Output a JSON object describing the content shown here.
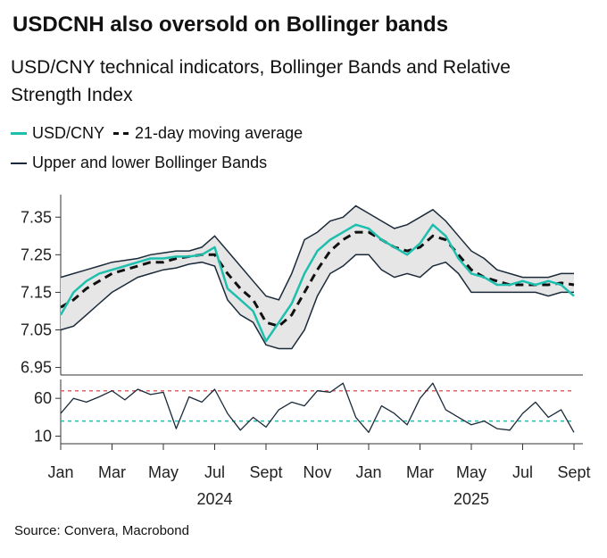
{
  "title": "USDCNH also oversold on Bollinger bands",
  "subtitle": "USD/CNY technical indicators, Bollinger Bands and Relative Strength Index",
  "legend": {
    "usd_cny": "USD/CNY",
    "ma21": "21-day moving average",
    "bands": "Upper and lower Bollinger Bands"
  },
  "source": "Source: Convera, Macrobond",
  "colors": {
    "usd_cny": "#1fbfae",
    "ma": "#111111",
    "bands": "#1b2a3a",
    "band_fill": "#e6e6e6",
    "rsi_line": "#1b2a3a",
    "rsi_upper": "#e06666",
    "rsi_lower": "#1fbfae"
  },
  "chart_data": {
    "type": "line",
    "upper_panel": {
      "y_ticks": [
        "7.35",
        "7.25",
        "7.15",
        "7.05",
        "6.95"
      ],
      "ylim": [
        6.93,
        7.41
      ],
      "x": [
        0,
        0.5,
        1,
        1.5,
        2,
        2.5,
        3,
        3.5,
        4,
        4.5,
        5,
        5.5,
        6,
        6.5,
        7,
        7.5,
        8,
        8.5,
        9,
        9.5,
        10,
        10.5,
        11,
        11.5,
        12,
        12.5,
        13,
        13.5,
        14,
        14.5,
        15,
        15.5,
        16,
        16.5,
        17,
        17.5,
        18,
        18.5,
        19,
        19.5,
        20
      ],
      "series": [
        {
          "name": "USD/CNY",
          "values": [
            7.09,
            7.15,
            7.18,
            7.2,
            7.21,
            7.22,
            7.23,
            7.24,
            7.24,
            7.245,
            7.245,
            7.25,
            7.27,
            7.16,
            7.13,
            7.1,
            7.02,
            7.07,
            7.12,
            7.2,
            7.26,
            7.29,
            7.31,
            7.33,
            7.32,
            7.29,
            7.27,
            7.25,
            7.28,
            7.33,
            7.3,
            7.24,
            7.2,
            7.19,
            7.17,
            7.17,
            7.18,
            7.17,
            7.18,
            7.17,
            7.14
          ]
        },
        {
          "name": "21-day moving average",
          "values": [
            7.11,
            7.13,
            7.16,
            7.18,
            7.2,
            7.21,
            7.22,
            7.23,
            7.23,
            7.24,
            7.245,
            7.25,
            7.25,
            7.2,
            7.16,
            7.13,
            7.07,
            7.06,
            7.09,
            7.15,
            7.21,
            7.26,
            7.29,
            7.31,
            7.31,
            7.29,
            7.27,
            7.26,
            7.27,
            7.3,
            7.29,
            7.25,
            7.21,
            7.19,
            7.18,
            7.17,
            7.17,
            7.17,
            7.17,
            7.175,
            7.17
          ]
        },
        {
          "name": "Upper Bollinger Band",
          "values": [
            7.19,
            7.2,
            7.21,
            7.22,
            7.23,
            7.235,
            7.24,
            7.25,
            7.255,
            7.26,
            7.26,
            7.27,
            7.3,
            7.26,
            7.22,
            7.18,
            7.14,
            7.13,
            7.2,
            7.29,
            7.31,
            7.34,
            7.35,
            7.38,
            7.36,
            7.34,
            7.32,
            7.33,
            7.35,
            7.37,
            7.34,
            7.3,
            7.26,
            7.24,
            7.21,
            7.2,
            7.19,
            7.19,
            7.19,
            7.2,
            7.2
          ]
        },
        {
          "name": "Lower Bollinger Band",
          "values": [
            7.05,
            7.06,
            7.09,
            7.12,
            7.15,
            7.17,
            7.19,
            7.2,
            7.21,
            7.215,
            7.225,
            7.23,
            7.22,
            7.13,
            7.09,
            7.07,
            7.01,
            7.0,
            7.0,
            7.05,
            7.14,
            7.2,
            7.22,
            7.25,
            7.25,
            7.21,
            7.19,
            7.2,
            7.19,
            7.22,
            7.23,
            7.2,
            7.15,
            7.15,
            7.15,
            7.15,
            7.15,
            7.15,
            7.14,
            7.15,
            7.15
          ]
        }
      ]
    },
    "rsi_panel": {
      "y_ticks": [
        "60",
        "10"
      ],
      "ylim": [
        0,
        85
      ],
      "upper_threshold": 70,
      "lower_threshold": 30,
      "x": [
        0,
        0.5,
        1,
        1.5,
        2,
        2.5,
        3,
        3.5,
        4,
        4.5,
        5,
        5.5,
        6,
        6.5,
        7,
        7.5,
        8,
        8.5,
        9,
        9.5,
        10,
        10.5,
        11,
        11.5,
        12,
        12.5,
        13,
        13.5,
        14,
        14.5,
        15,
        15.5,
        16,
        16.5,
        17,
        17.5,
        18,
        18.5,
        19,
        19.5,
        20
      ],
      "values": [
        40,
        60,
        55,
        62,
        70,
        58,
        72,
        65,
        68,
        20,
        62,
        55,
        72,
        40,
        18,
        35,
        22,
        45,
        55,
        50,
        70,
        68,
        80,
        35,
        15,
        50,
        40,
        25,
        60,
        80,
        45,
        35,
        25,
        30,
        20,
        18,
        40,
        55,
        35,
        45,
        15
      ]
    },
    "x_tick_labels": [
      "Jan",
      "Mar",
      "May",
      "Jul",
      "Sept",
      "Nov",
      "Jan",
      "Mar",
      "May",
      "Jul",
      "Sept"
    ],
    "x_tick_months": [
      0,
      2,
      4,
      6,
      8,
      10,
      12,
      14,
      16,
      18,
      20
    ],
    "years": [
      "2024",
      "2025"
    ]
  }
}
